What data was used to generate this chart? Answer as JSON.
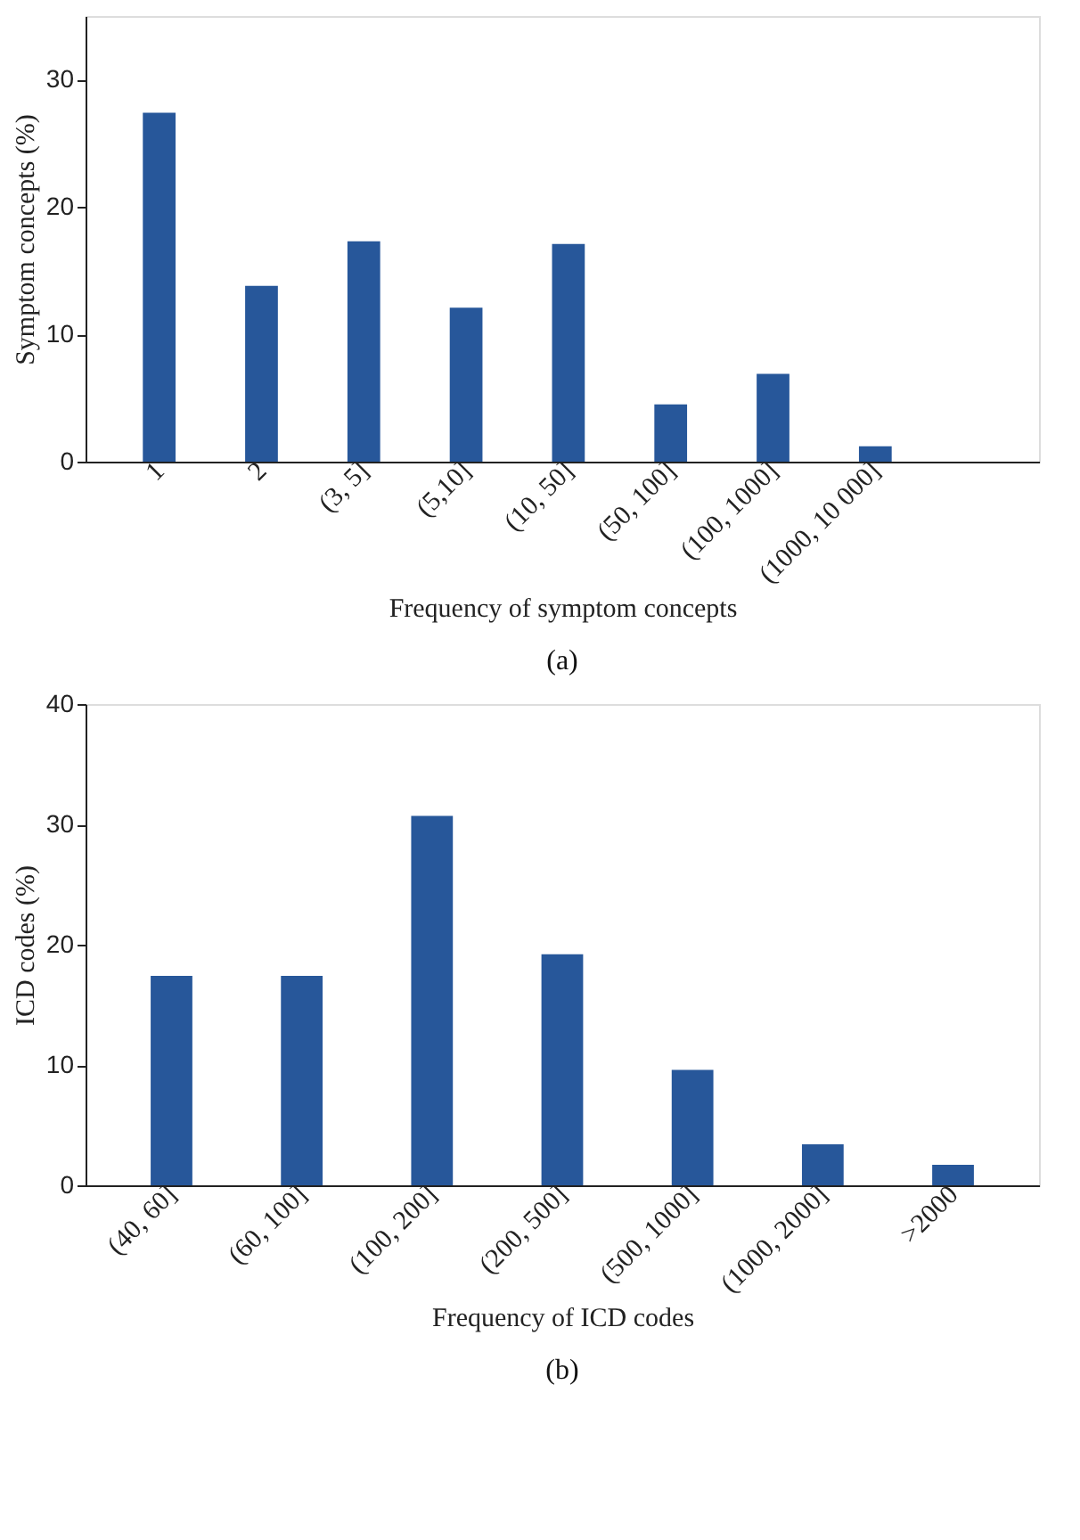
{
  "chart_data": [
    {
      "type": "bar",
      "categories": [
        "1",
        "2",
        "(3, 5]",
        "(5,10]",
        "(10, 50]",
        "(50, 100]",
        "(100, 1000]",
        "(1000, 10 000]"
      ],
      "series": [
        {
          "color": "#27579a",
          "values": [
            27.4,
            13.8,
            17.3,
            12.1,
            17.1,
            4.5,
            6.9,
            1.2
          ]
        }
      ],
      "xlabel": "Frequency of symptom concepts",
      "ylabel": "Symptom concepts (%)",
      "ylim": [
        0,
        35
      ],
      "yticks": [
        0,
        10,
        20,
        30
      ],
      "grid": false,
      "legend": false,
      "annotations": [
        "(a)"
      ]
    },
    {
      "type": "bar",
      "categories": [
        "(40, 60]",
        "(60, 100]",
        "(100, 200]",
        "(200, 500]",
        "(500, 1000]",
        "(1000, 2000]",
        ">2000"
      ],
      "series": [
        {
          "color": "#27579a",
          "values": [
            17.4,
            17.4,
            30.7,
            19.2,
            9.6,
            3.4,
            1.7
          ]
        }
      ],
      "xlabel": "Frequency of ICD codes",
      "ylabel": "ICD codes (%)",
      "ylim": [
        0,
        40
      ],
      "yticks": [
        0,
        10,
        20,
        30,
        40
      ],
      "grid": false,
      "legend": false,
      "annotations": [
        "(b)"
      ]
    }
  ]
}
